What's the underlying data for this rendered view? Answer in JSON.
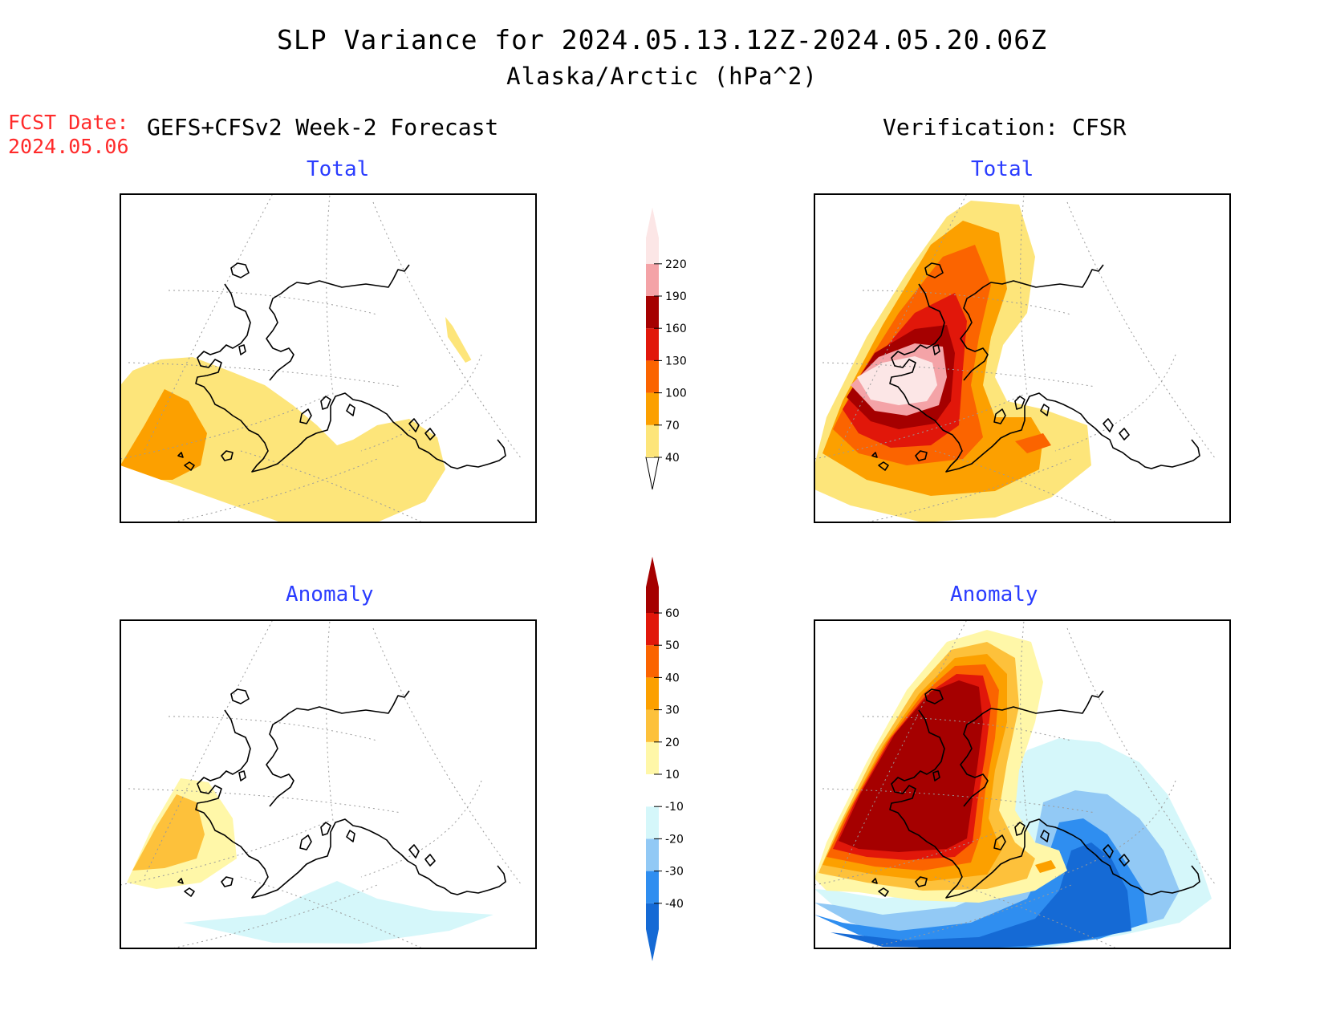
{
  "title": {
    "line1": "SLP Variance for 2024.05.13.12Z-2024.05.20.06Z",
    "line2": "Alaska/Arctic (hPa^2)"
  },
  "forecast": {
    "date_label": "FCST Date:",
    "date_value": "2024.05.06",
    "heading": "GEFS+CFSv2 Week-2 Forecast"
  },
  "verification": {
    "heading": "Verification: CFSR"
  },
  "panels": {
    "forecast_total": "Total",
    "forecast_anomaly": "Anomaly",
    "verification_total": "Total",
    "verification_anomaly": "Anomaly"
  },
  "total_colorbar": {
    "labels": [
      "40",
      "70",
      "100",
      "130",
      "160",
      "190",
      "220"
    ],
    "colors": [
      "#fde57a",
      "#fca000",
      "#fb6400",
      "#e1170a",
      "#a50000",
      "#f4a3a7",
      "#fce6e6"
    ]
  },
  "anomaly_colorbar": {
    "labels": [
      "-40",
      "-30",
      "-20",
      "-10",
      "10",
      "20",
      "30",
      "40",
      "50",
      "60"
    ],
    "colors": [
      "#156ad5",
      "#2f8ef0",
      "#92c9f5",
      "#d5f7fa",
      "#ffffff",
      "#fff7a8",
      "#fdc13b",
      "#fca000",
      "#fb6400",
      "#e1170a",
      "#a50000"
    ]
  }
}
